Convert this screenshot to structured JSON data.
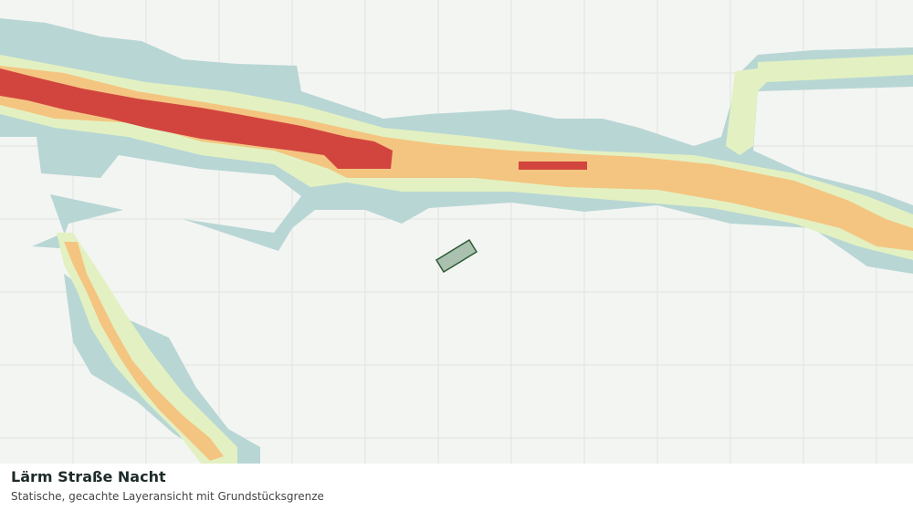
{
  "header": {
    "title": "Lärm Straße Nacht",
    "subtitle": "Statische, gecachte Layeransicht mit Grundstücksgrenze"
  }
}
